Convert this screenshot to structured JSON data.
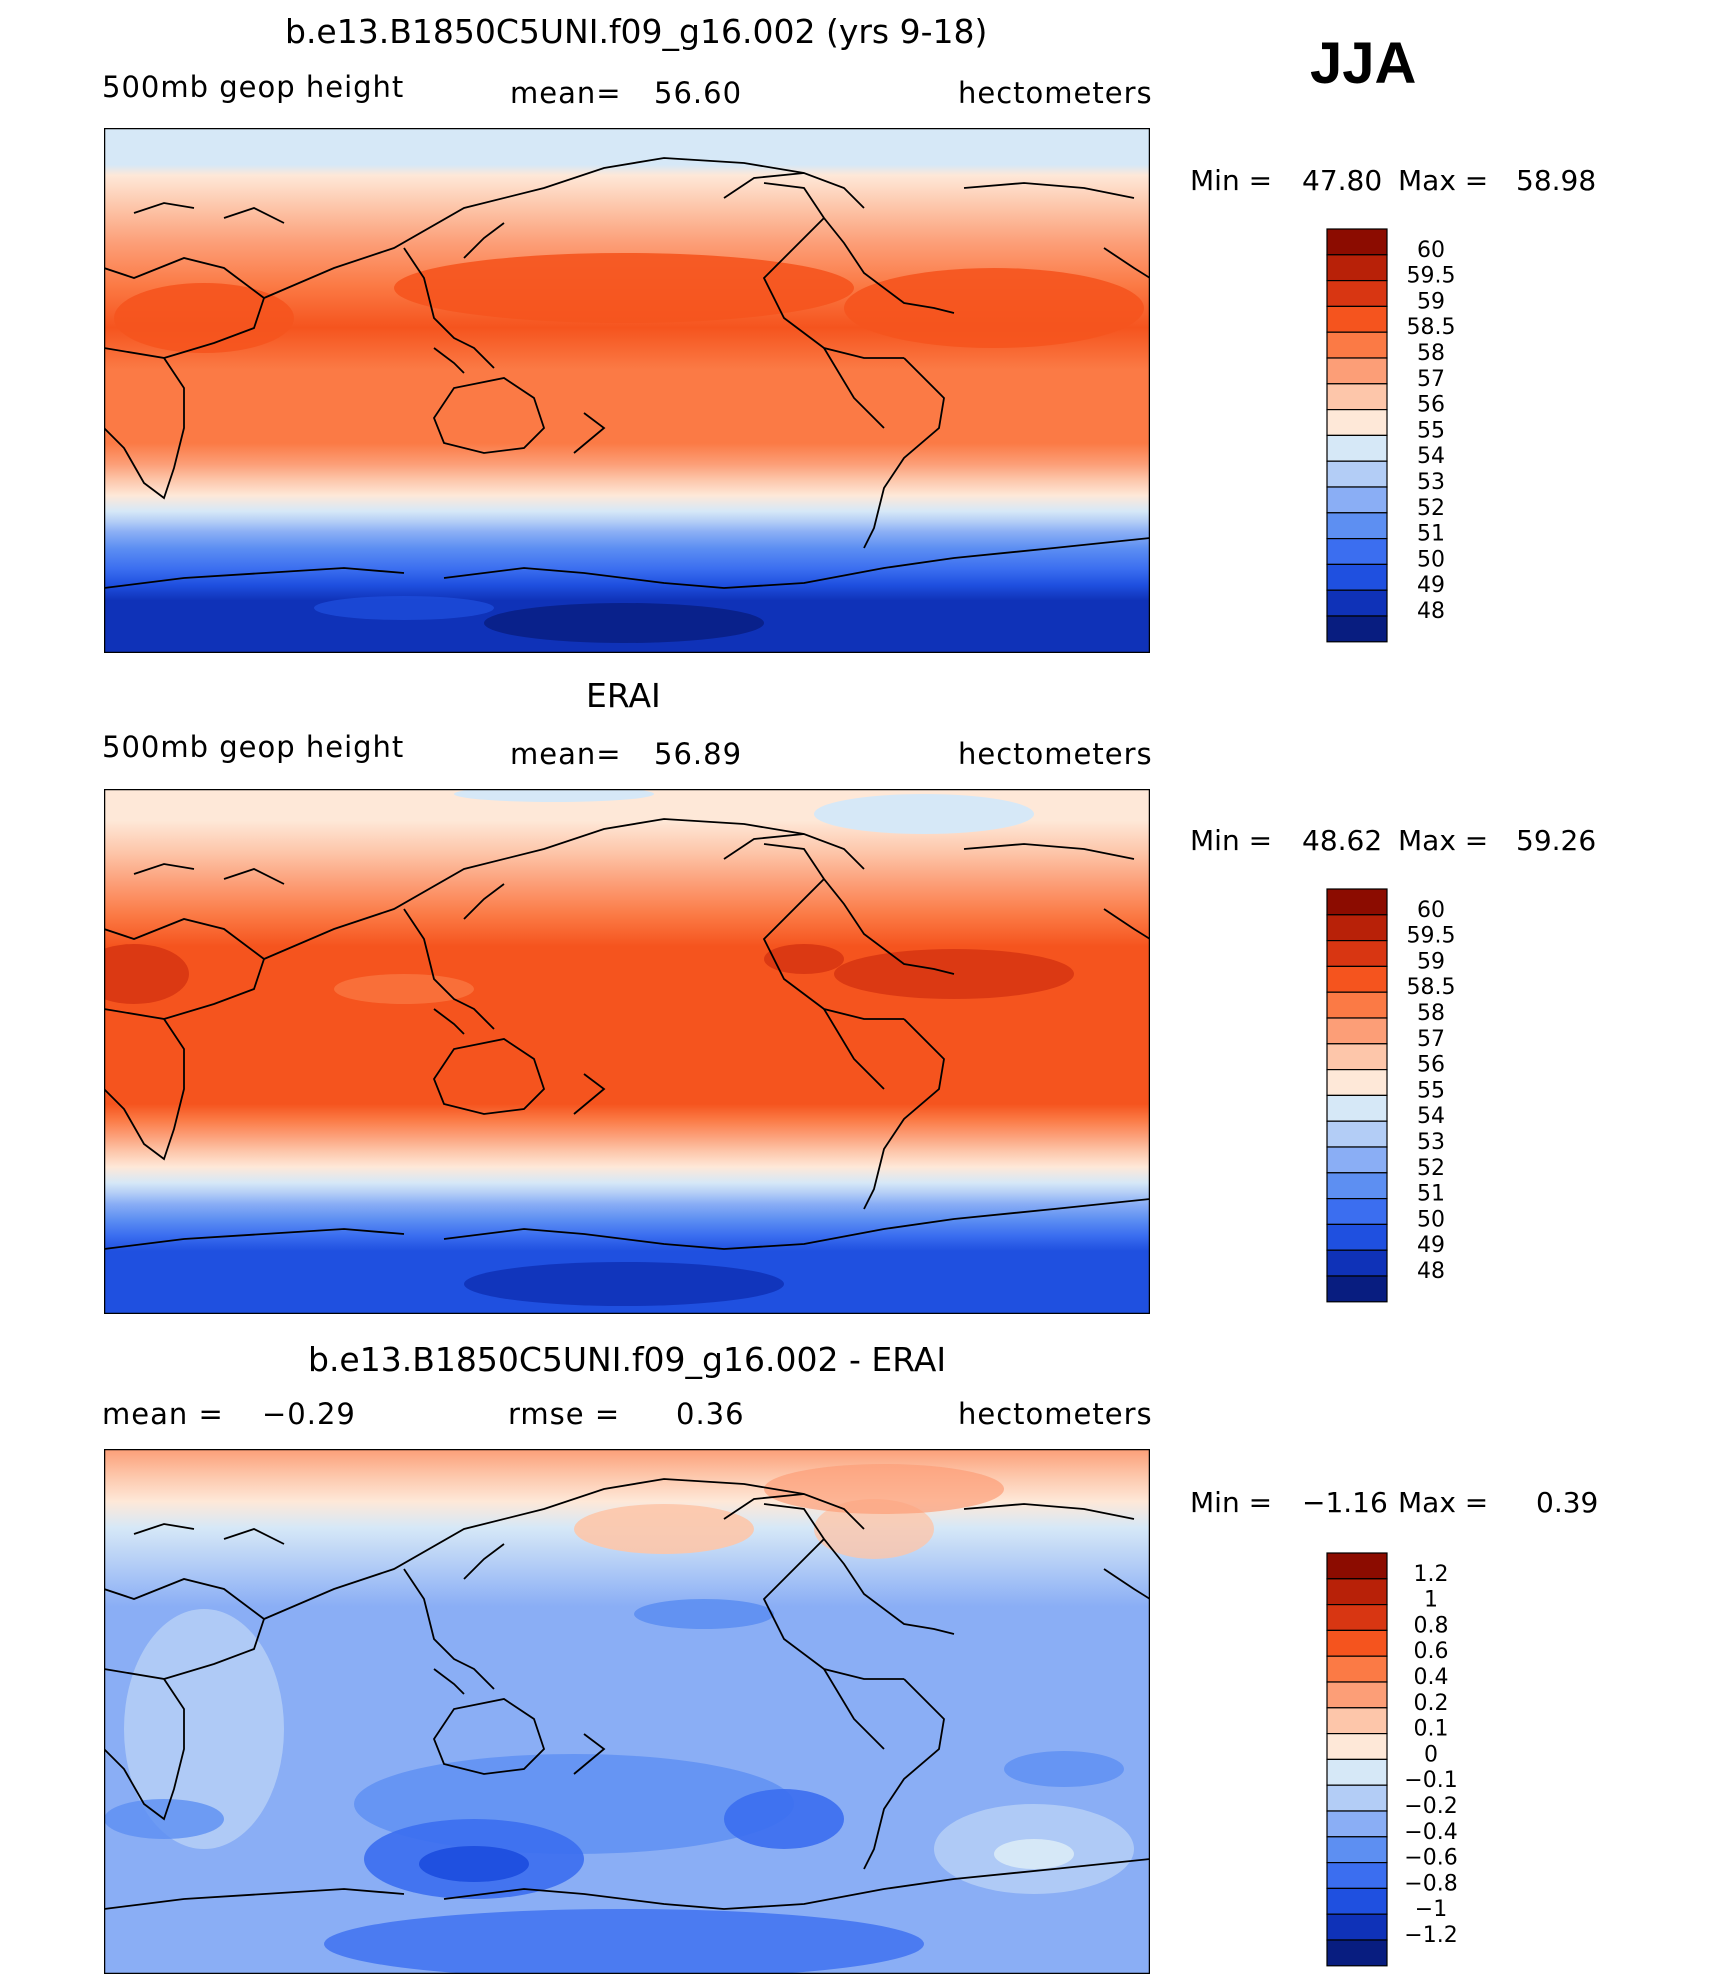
{
  "season": "JJA",
  "units": "hectometers",
  "panels": [
    {
      "title": "b.e13.B1850C5UNI.f09_g16.002 (yrs 9-18)",
      "variable": "500mb geop height",
      "stat_label": "mean=",
      "stat_value": "56.60",
      "minmax": {
        "min_label": "Min =",
        "min": "47.80",
        "max_label": "Max =",
        "max": "58.98"
      },
      "levels": [
        "60",
        "59.5",
        "59",
        "58.5",
        "58",
        "57",
        "56",
        "55",
        "54",
        "53",
        "52",
        "51",
        "50",
        "49",
        "48"
      ],
      "colors": [
        "#8c0c00",
        "#b82108",
        "#d83612",
        "#f5541e",
        "#fb7a45",
        "#fc9e77",
        "#fdc6aa",
        "#fee8d8",
        "#d6e8f7",
        "#b3cdf6",
        "#8aaef5",
        "#5d8ff2",
        "#3b6ef0",
        "#1f50e0",
        "#0f32b8",
        "#081d80"
      ]
    },
    {
      "title": "ERAI",
      "variable": "500mb geop height",
      "stat_label": "mean=",
      "stat_value": "56.89",
      "minmax": {
        "min_label": "Min =",
        "min": "48.62",
        "max_label": "Max =",
        "max": "59.26"
      },
      "levels": [
        "60",
        "59.5",
        "59",
        "58.5",
        "58",
        "57",
        "56",
        "55",
        "54",
        "53",
        "52",
        "51",
        "50",
        "49",
        "48"
      ],
      "colors": [
        "#8c0c00",
        "#b82108",
        "#d83612",
        "#f5541e",
        "#fb7a45",
        "#fc9e77",
        "#fdc6aa",
        "#fee8d8",
        "#d6e8f7",
        "#b3cdf6",
        "#8aaef5",
        "#5d8ff2",
        "#3b6ef0",
        "#1f50e0",
        "#0f32b8",
        "#081d80"
      ]
    },
    {
      "title": "b.e13.B1850C5UNI.f09_g16.002 - ERAI",
      "stat_label": "mean =",
      "stat_value": "−0.29",
      "stat2_label": "rmse =",
      "stat2_value": "0.36",
      "minmax": {
        "min_label": "Min =",
        "min": "−1.16",
        "max_label": "Max =",
        "max": "0.39"
      },
      "levels": [
        "1.2",
        "1",
        "0.8",
        "0.6",
        "0.4",
        "0.2",
        "0.1",
        "0",
        "−0.1",
        "−0.2",
        "−0.4",
        "−0.6",
        "−0.8",
        "−1",
        "−1.2"
      ],
      "colors": [
        "#8c0c00",
        "#b82108",
        "#d83612",
        "#f5541e",
        "#fb7a45",
        "#fc9e77",
        "#fdc6aa",
        "#fee8d8",
        "#d6e8f7",
        "#b3cdf6",
        "#8aaef5",
        "#5d8ff2",
        "#3b6ef0",
        "#1f50e0",
        "#0f32b8",
        "#081d80"
      ]
    }
  ]
}
